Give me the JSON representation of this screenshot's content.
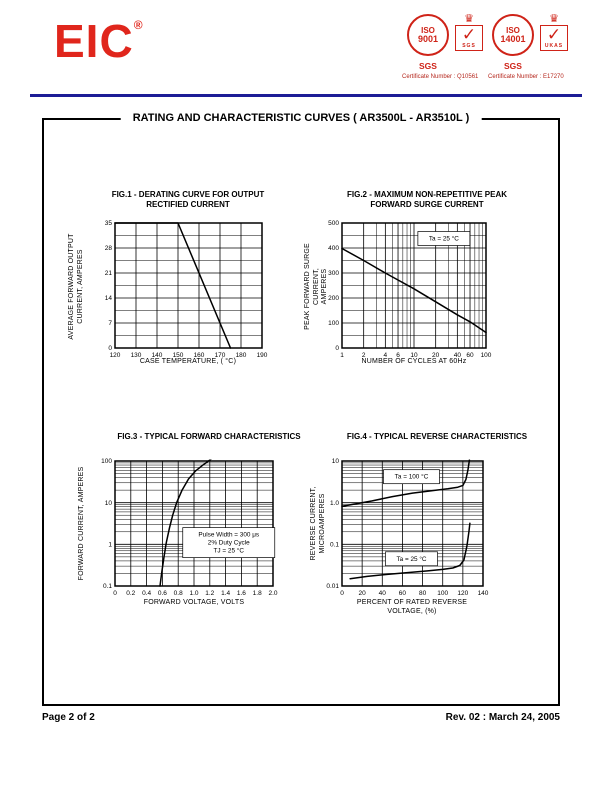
{
  "page": {
    "logo_text": "EIC",
    "logo_reg": "®",
    "title": "RATING AND CHARACTERISTIC CURVES  ( AR3500L - AR3510L )",
    "footer_left": "Page 2 of 2",
    "footer_right": "Rev. 02 : March 24, 2005",
    "accent_red": "#e0261c",
    "rule_navy": "#1c1c96"
  },
  "badges": [
    {
      "iso": "ISO",
      "num": "9001",
      "org": "SGS",
      "crown": "♛",
      "mark": "✓",
      "box_label": "SGS",
      "caption": "Certificate Number : Q10561"
    },
    {
      "iso": "ISO",
      "num": "14001",
      "org": "SGS",
      "crown": "♛",
      "mark": "✓",
      "box_label": "UKAS",
      "caption": "Certificate Number : E17270"
    }
  ],
  "chart_data": [
    {
      "type": "line",
      "title": "FIG.1 - DERATING CURVE FOR OUTPUT\nRECTIFIED CURRENT",
      "xlabel": "CASE TEMPERATURE, ( °C)",
      "ylabel": "AVERAGE FORWARD OUTPUT\nCURRENT, AMPERES",
      "x": {
        "scale": "linear",
        "min": 120,
        "max": 190,
        "ticks": [
          120,
          130,
          140,
          150,
          160,
          170,
          180,
          190
        ],
        "tick_labels": [
          "120",
          "130",
          "140",
          "150",
          "160",
          "170",
          "180",
          "190"
        ],
        "minor": []
      },
      "y": {
        "scale": "linear",
        "min": 0,
        "max": 35,
        "ticks": [
          0,
          7,
          14,
          21,
          28,
          35
        ],
        "tick_labels": [
          "0",
          "7",
          "14",
          "21",
          "28",
          "35"
        ],
        "minor": [
          3.5,
          10.5,
          17.5,
          24.5,
          31.5
        ]
      },
      "series": [
        {
          "name": "derating",
          "points": [
            [
              120,
              35
            ],
            [
              150,
              35
            ],
            [
              175,
              0
            ]
          ]
        }
      ],
      "annotations": []
    },
    {
      "type": "line",
      "title": "FIG.2 - MAXIMUM NON-REPETITIVE PEAK\nFORWARD SURGE CURRENT",
      "xlabel": "NUMBER OF CYCLES AT 60Hz",
      "ylabel": "PEAK FORWARD SURGE CURRENT,\nAMPERES",
      "x": {
        "scale": "log",
        "min": 1,
        "max": 100,
        "ticks": [
          1,
          2,
          4,
          6,
          10,
          20,
          40,
          60,
          100
        ],
        "tick_labels": [
          "1",
          "2",
          "4",
          "6",
          "10",
          "20",
          "40",
          "60",
          "100"
        ],
        "minor": [
          3,
          5,
          7,
          8,
          9,
          30,
          50,
          70,
          80,
          90
        ]
      },
      "y": {
        "scale": "linear",
        "min": 0,
        "max": 500,
        "ticks": [
          0,
          100,
          200,
          300,
          400,
          500
        ],
        "tick_labels": [
          "0",
          "100",
          "200",
          "300",
          "400",
          "500"
        ],
        "minor": [
          50,
          150,
          250,
          350,
          450
        ]
      },
      "series": [
        {
          "name": "surge",
          "points": [
            [
              1,
              398
            ],
            [
              2,
              350
            ],
            [
              4,
              300
            ],
            [
              6,
              272
            ],
            [
              10,
              237
            ],
            [
              20,
              185
            ],
            [
              40,
              133
            ],
            [
              60,
              105
            ],
            [
              100,
              62
            ]
          ]
        }
      ],
      "annotations": [
        {
          "x": 26,
          "y": 438,
          "lines": [
            "Ta = 25 °C"
          ]
        }
      ]
    },
    {
      "type": "line",
      "title": "FIG.3 - TYPICAL FORWARD CHARACTERISTICS",
      "xlabel": "FORWARD VOLTAGE, VOLTS",
      "ylabel": "FORWARD CURRENT, AMPERES",
      "x": {
        "scale": "linear",
        "min": 0,
        "max": 2.0,
        "ticks": [
          0,
          0.2,
          0.4,
          0.6,
          0.8,
          1.0,
          1.2,
          1.4,
          1.6,
          1.8,
          2.0
        ],
        "tick_labels": [
          "0",
          "0.2",
          "0.4",
          "0.6",
          "0.8",
          "1.0",
          "1.2",
          "1.4",
          "1.6",
          "1.8",
          "2.0"
        ],
        "minor": []
      },
      "y": {
        "scale": "log",
        "min": 0.1,
        "max": 100,
        "ticks": [
          0.1,
          1,
          10,
          100
        ],
        "tick_labels": [
          "0.1",
          "1",
          "10",
          "100"
        ],
        "minor": [
          0.2,
          0.3,
          0.4,
          0.5,
          0.6,
          0.7,
          0.8,
          0.9,
          2,
          3,
          4,
          5,
          6,
          7,
          8,
          9,
          20,
          30,
          40,
          50,
          60,
          70,
          80,
          90
        ]
      },
      "series": [
        {
          "name": "forward",
          "points": [
            [
              0.57,
              0.1
            ],
            [
              0.59,
              0.2
            ],
            [
              0.62,
              0.5
            ],
            [
              0.65,
              1.1
            ],
            [
              0.69,
              2.5
            ],
            [
              0.73,
              5
            ],
            [
              0.78,
              10
            ],
            [
              0.85,
              20
            ],
            [
              0.93,
              37
            ],
            [
              1.02,
              58
            ],
            [
              1.12,
              82
            ],
            [
              1.22,
              112
            ]
          ]
        }
      ],
      "annotations": [
        {
          "x": 1.44,
          "y": 1.1,
          "lines": [
            "Pulse Width = 300 μs",
            "2% Duty Cycle",
            "TJ = 25 °C"
          ]
        }
      ]
    },
    {
      "type": "line",
      "title": "FIG.4 - TYPICAL REVERSE CHARACTERISTICS",
      "xlabel": "PERCENT OF RATED REVERSE\nVOLTAGE, (%)",
      "ylabel": "REVERSE CURRENT, MICROAMPERES",
      "x": {
        "scale": "linear",
        "min": 0,
        "max": 140,
        "ticks": [
          0,
          20,
          40,
          60,
          80,
          100,
          120,
          140
        ],
        "tick_labels": [
          "0",
          "20",
          "40",
          "60",
          "80",
          "100",
          "120",
          "140"
        ],
        "minor": []
      },
      "y": {
        "scale": "log",
        "min": 0.01,
        "max": 10,
        "ticks": [
          0.01,
          0.1,
          1.0,
          10
        ],
        "tick_labels": [
          "0.01",
          "0.1",
          "1.0",
          "10"
        ],
        "minor": [
          0.02,
          0.03,
          0.04,
          0.05,
          0.06,
          0.07,
          0.08,
          0.09,
          0.2,
          0.3,
          0.4,
          0.5,
          0.6,
          0.7,
          0.8,
          0.9,
          2,
          3,
          4,
          5,
          6,
          7,
          8,
          9
        ]
      },
      "series": [
        {
          "name": "Ta = 100 °C",
          "points": [
            [
              0,
              0.82
            ],
            [
              15,
              0.95
            ],
            [
              30,
              1.1
            ],
            [
              50,
              1.4
            ],
            [
              70,
              1.7
            ],
            [
              90,
              1.95
            ],
            [
              105,
              2.15
            ],
            [
              115,
              2.35
            ],
            [
              120,
              2.6
            ],
            [
              123,
              3.6
            ],
            [
              125,
              6
            ],
            [
              126.5,
              10.5
            ]
          ]
        },
        {
          "name": "Ta = 25 °C",
          "points": [
            [
              8,
              0.015
            ],
            [
              25,
              0.017
            ],
            [
              45,
              0.019
            ],
            [
              65,
              0.021
            ],
            [
              85,
              0.023
            ],
            [
              100,
              0.025
            ],
            [
              110,
              0.027
            ],
            [
              117,
              0.031
            ],
            [
              121,
              0.042
            ],
            [
              124,
              0.09
            ],
            [
              126,
              0.2
            ],
            [
              127,
              0.32
            ]
          ]
        }
      ],
      "annotations": [
        {
          "x": 69,
          "y": 4.2,
          "lines": [
            "Ta = 100 °C"
          ]
        },
        {
          "x": 69,
          "y": 0.045,
          "lines": [
            "Ta = 25 °C"
          ]
        }
      ]
    }
  ]
}
